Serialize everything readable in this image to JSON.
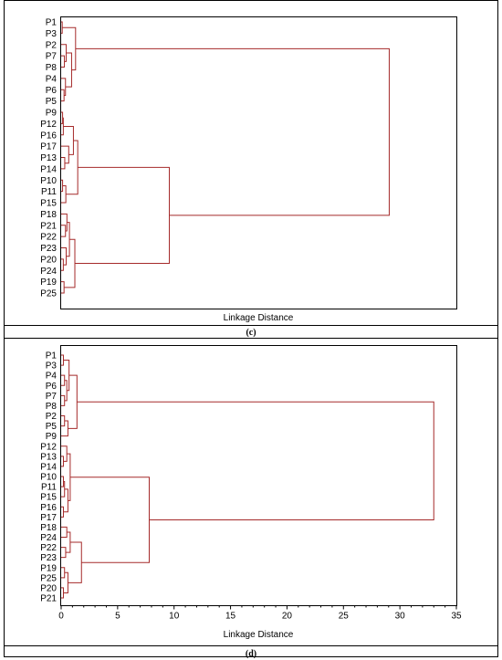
{
  "chart_data": [
    {
      "type": "dendrogram",
      "panel_label": "(c)",
      "xlabel": "Linkage Distance",
      "show_ticks": false,
      "xlim": [
        0,
        100
      ],
      "line_color": "#a52a2a",
      "leaves": [
        "P1",
        "P3",
        "P2",
        "P7",
        "P8",
        "P4",
        "P6",
        "P5",
        "P9",
        "P12",
        "P16",
        "P17",
        "P13",
        "P14",
        "P10",
        "P11",
        "P15",
        "P18",
        "P21",
        "P22",
        "P23",
        "P20",
        "P24",
        "P19",
        "P25"
      ],
      "merges": [
        {
          "a": "P1",
          "b": "P3",
          "height": 0.3
        },
        {
          "a": "P7",
          "b": "P8",
          "height": 0.9
        },
        {
          "a": "P2",
          "b": "m2",
          "height": 1.4
        },
        {
          "a": "P6",
          "b": "P5",
          "height": 0.8
        },
        {
          "a": "P4",
          "b": "m4",
          "height": 1.2
        },
        {
          "a": "m3",
          "b": "m5",
          "height": 2.9
        },
        {
          "a": "m1",
          "b": "m6",
          "height": 4.0
        },
        {
          "a": "P9",
          "b": "P12",
          "height": 0.4
        },
        {
          "a": "m8",
          "b": "P16",
          "height": 0.6
        },
        {
          "a": "P13",
          "b": "P14",
          "height": 1.0
        },
        {
          "a": "P17",
          "b": "m10",
          "height": 2.1
        },
        {
          "a": "m9",
          "b": "m11",
          "height": 3.4
        },
        {
          "a": "P10",
          "b": "P11",
          "height": 0.4
        },
        {
          "a": "m13",
          "b": "P15",
          "height": 1.3
        },
        {
          "a": "m12",
          "b": "m14",
          "height": 4.6
        },
        {
          "a": "P21",
          "b": "P22",
          "height": 1.2
        },
        {
          "a": "P18",
          "b": "m16",
          "height": 1.6
        },
        {
          "a": "P20",
          "b": "P24",
          "height": 0.6
        },
        {
          "a": "P23",
          "b": "m18",
          "height": 1.4
        },
        {
          "a": "m17",
          "b": "m19",
          "height": 2.3
        },
        {
          "a": "P19",
          "b": "P25",
          "height": 0.8
        },
        {
          "a": "m20",
          "b": "m21",
          "height": 3.8
        },
        {
          "a": "m15",
          "b": "m22",
          "height": 30.0
        },
        {
          "a": "m7",
          "b": "m23",
          "height": 91.0
        }
      ]
    },
    {
      "type": "dendrogram",
      "panel_label": "(d)",
      "xlabel": "Linkage Distance",
      "show_ticks": true,
      "xlim": [
        0,
        35
      ],
      "xticks": [
        0,
        5,
        10,
        15,
        20,
        25,
        30,
        35
      ],
      "line_color": "#a52a2a",
      "leaves": [
        "P1",
        "P3",
        "P4",
        "P6",
        "P7",
        "P8",
        "P2",
        "P5",
        "P9",
        "P12",
        "P13",
        "P14",
        "P10",
        "P11",
        "P15",
        "P16",
        "P17",
        "P18",
        "P24",
        "P22",
        "P23",
        "P19",
        "P25",
        "P20",
        "P21"
      ],
      "merges": [
        {
          "a": "P1",
          "b": "P3",
          "height": 0.2
        },
        {
          "a": "P4",
          "b": "P6",
          "height": 0.3
        },
        {
          "a": "P7",
          "b": "P8",
          "height": 0.3
        },
        {
          "a": "m2",
          "b": "m3",
          "height": 0.5
        },
        {
          "a": "m1",
          "b": "m4",
          "height": 0.7
        },
        {
          "a": "P2",
          "b": "P5",
          "height": 0.3
        },
        {
          "a": "m6",
          "b": "P9",
          "height": 0.6
        },
        {
          "a": "m5",
          "b": "m7",
          "height": 1.4
        },
        {
          "a": "P13",
          "b": "P14",
          "height": 0.2
        },
        {
          "a": "P12",
          "b": "m9",
          "height": 0.5
        },
        {
          "a": "P10",
          "b": "P11",
          "height": 0.2
        },
        {
          "a": "m11",
          "b": "P15",
          "height": 0.3
        },
        {
          "a": "P16",
          "b": "P17",
          "height": 0.2
        },
        {
          "a": "m12",
          "b": "m13",
          "height": 0.6
        },
        {
          "a": "m10",
          "b": "m14",
          "height": 0.8
        },
        {
          "a": "P18",
          "b": "P24",
          "height": 0.5
        },
        {
          "a": "P22",
          "b": "P23",
          "height": 0.4
        },
        {
          "a": "m16",
          "b": "m17",
          "height": 0.8
        },
        {
          "a": "P19",
          "b": "P25",
          "height": 0.3
        },
        {
          "a": "P20",
          "b": "P21",
          "height": 0.2
        },
        {
          "a": "m19",
          "b": "m20",
          "height": 0.6
        },
        {
          "a": "m18",
          "b": "m21",
          "height": 1.8
        },
        {
          "a": "m15",
          "b": "m22",
          "height": 7.8
        },
        {
          "a": "m8",
          "b": "m23",
          "height": 33.0
        }
      ]
    }
  ]
}
